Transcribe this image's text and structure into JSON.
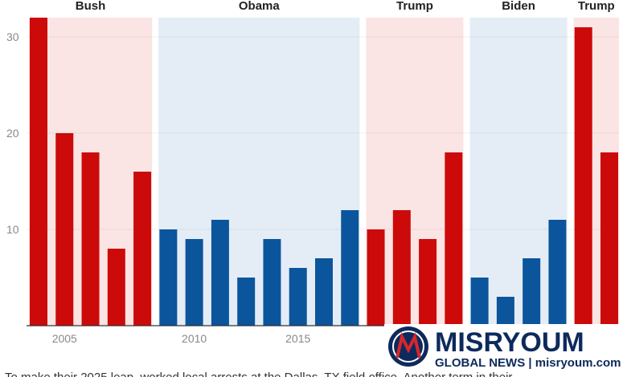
{
  "chart_data": {
    "type": "bar",
    "ylim": [
      0,
      32
    ],
    "yticks": [
      10,
      20,
      30
    ],
    "grid": true,
    "groups": [
      {
        "name": "Bush",
        "color": "#cc0a0a",
        "band_color": "#fbe4e4",
        "categories": [
          null,
          "2005",
          null,
          null,
          null
        ],
        "values": [
          32,
          20,
          18,
          8,
          16
        ]
      },
      {
        "name": "Obama",
        "color": "#0b559c",
        "band_color": "#e4edf6",
        "categories": [
          null,
          "2010",
          null,
          null,
          null,
          "2015",
          null,
          null
        ],
        "values": [
          10,
          9,
          11,
          5,
          9,
          6,
          7,
          12
        ]
      },
      {
        "name": "Trump",
        "color": "#cc0a0a",
        "band_color": "#fbe4e4",
        "categories": [
          null,
          null,
          null,
          null
        ],
        "values": [
          10,
          12,
          9,
          18
        ]
      },
      {
        "name": "Biden",
        "color": "#0b559c",
        "band_color": "#e4edf6",
        "categories": [
          null,
          null,
          null,
          null
        ],
        "values": [
          5,
          3,
          7,
          11
        ]
      },
      {
        "name": "Trump",
        "color": "#cc0a0a",
        "band_color": "#fbe4e4",
        "categories": [
          null,
          null
        ],
        "values": [
          31,
          18
        ]
      }
    ]
  },
  "watermark": {
    "brand": "MISRYOUM",
    "tagline": "GLOBAL NEWS | misryoum.com"
  },
  "caption": "To make their 2025 leap, worked local arrests at the Dallas, TX field office. Another term in their"
}
